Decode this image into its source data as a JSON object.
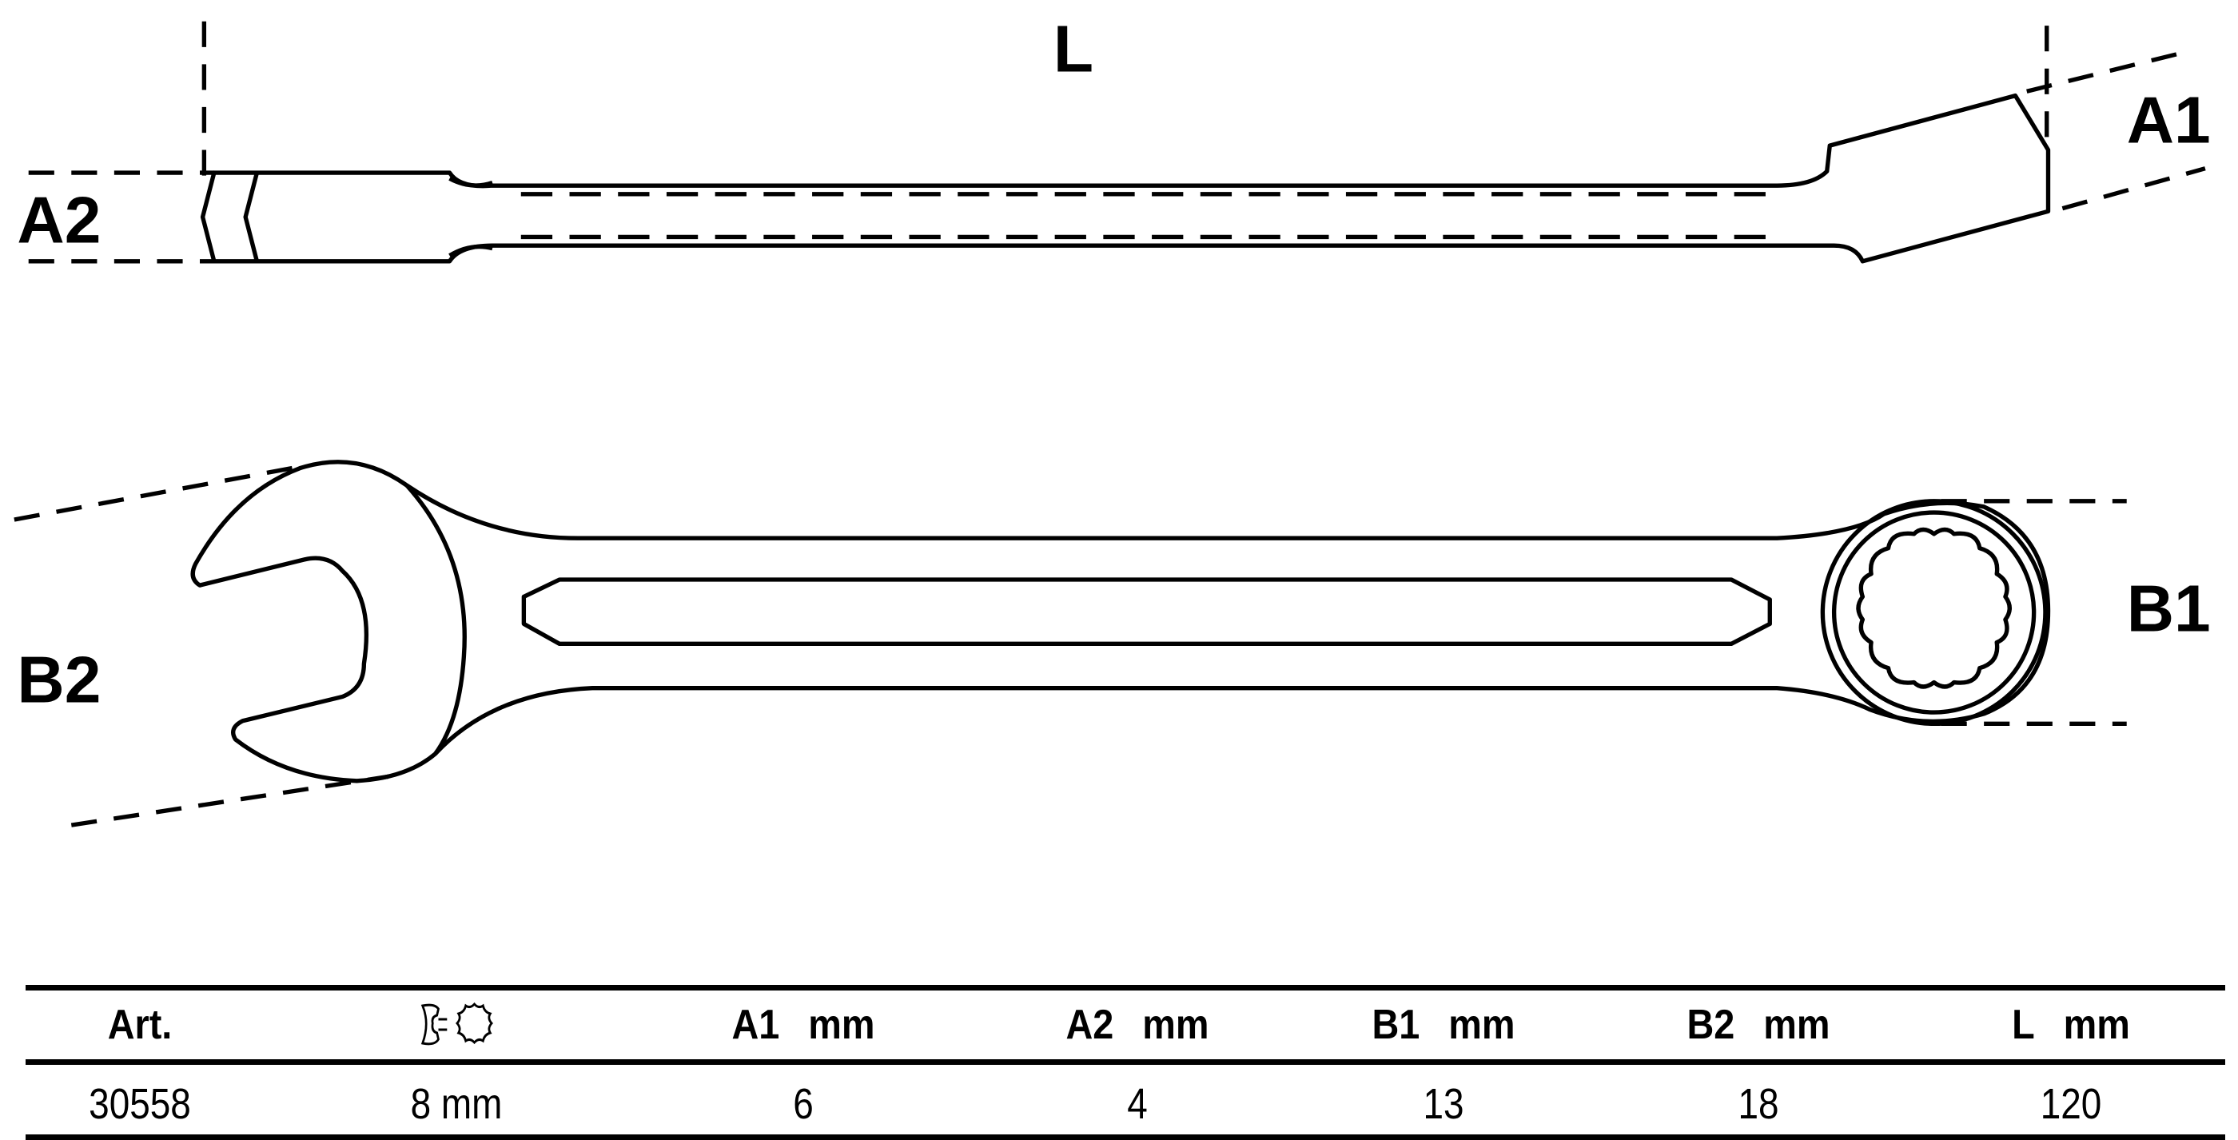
{
  "drawing": {
    "labels": {
      "L": "L",
      "A1": "A1",
      "A2": "A2",
      "B1": "B1",
      "B2": "B2"
    }
  },
  "table": {
    "headers": [
      {
        "name": "Art.",
        "unit": ""
      },
      {
        "name": "",
        "unit": "",
        "icon": "open-end-and-ring-wrench-icon"
      },
      {
        "name": "A1",
        "unit": "mm"
      },
      {
        "name": "A2",
        "unit": "mm"
      },
      {
        "name": "B1",
        "unit": "mm"
      },
      {
        "name": "B2",
        "unit": "mm"
      },
      {
        "name": "L",
        "unit": "mm"
      }
    ],
    "rows": [
      [
        "30558",
        "8 mm",
        "6",
        "4",
        "13",
        "18",
        "120"
      ]
    ]
  }
}
